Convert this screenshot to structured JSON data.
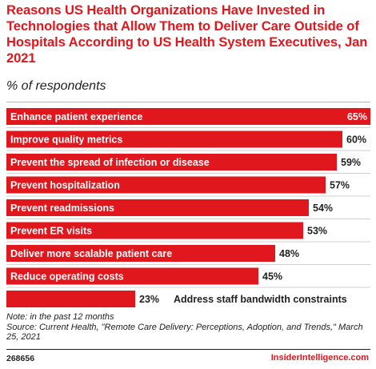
{
  "header": {
    "title": "Reasons US Health Organizations Have Invested in Technologies that Allow Them to Deliver Care Outside of Hospitals According to US Health System Executives, Jan 2021",
    "subtitle": "% of respondents"
  },
  "chart_data": {
    "type": "bar",
    "orientation": "horizontal",
    "categories": [
      "Enhance patient experience",
      "Improve quality metrics",
      "Prevent the spread of infection or disease",
      "Prevent hospitalization",
      "Prevent readmissions",
      "Prevent ER visits",
      "Deliver more scalable patient care",
      "Reduce operating costs",
      "Address staff bandwidth constraints"
    ],
    "values": [
      65,
      60,
      59,
      57,
      54,
      53,
      48,
      45,
      23
    ],
    "value_labels": [
      "65%",
      "60%",
      "59%",
      "57%",
      "54%",
      "53%",
      "48%",
      "45%",
      "23%"
    ],
    "xlim": [
      0,
      65
    ],
    "bar_color": "#e1171e",
    "grid": false,
    "legend": "none"
  },
  "notes": {
    "note": "Note: in the past 12 months",
    "source": "Source: Current Health, \"Remote Care Delivery: Perceptions, Adoption, and Trends,\" March 25, 2021"
  },
  "footer": {
    "chart_id": "268656",
    "brand": "InsiderIntelligence.com"
  }
}
